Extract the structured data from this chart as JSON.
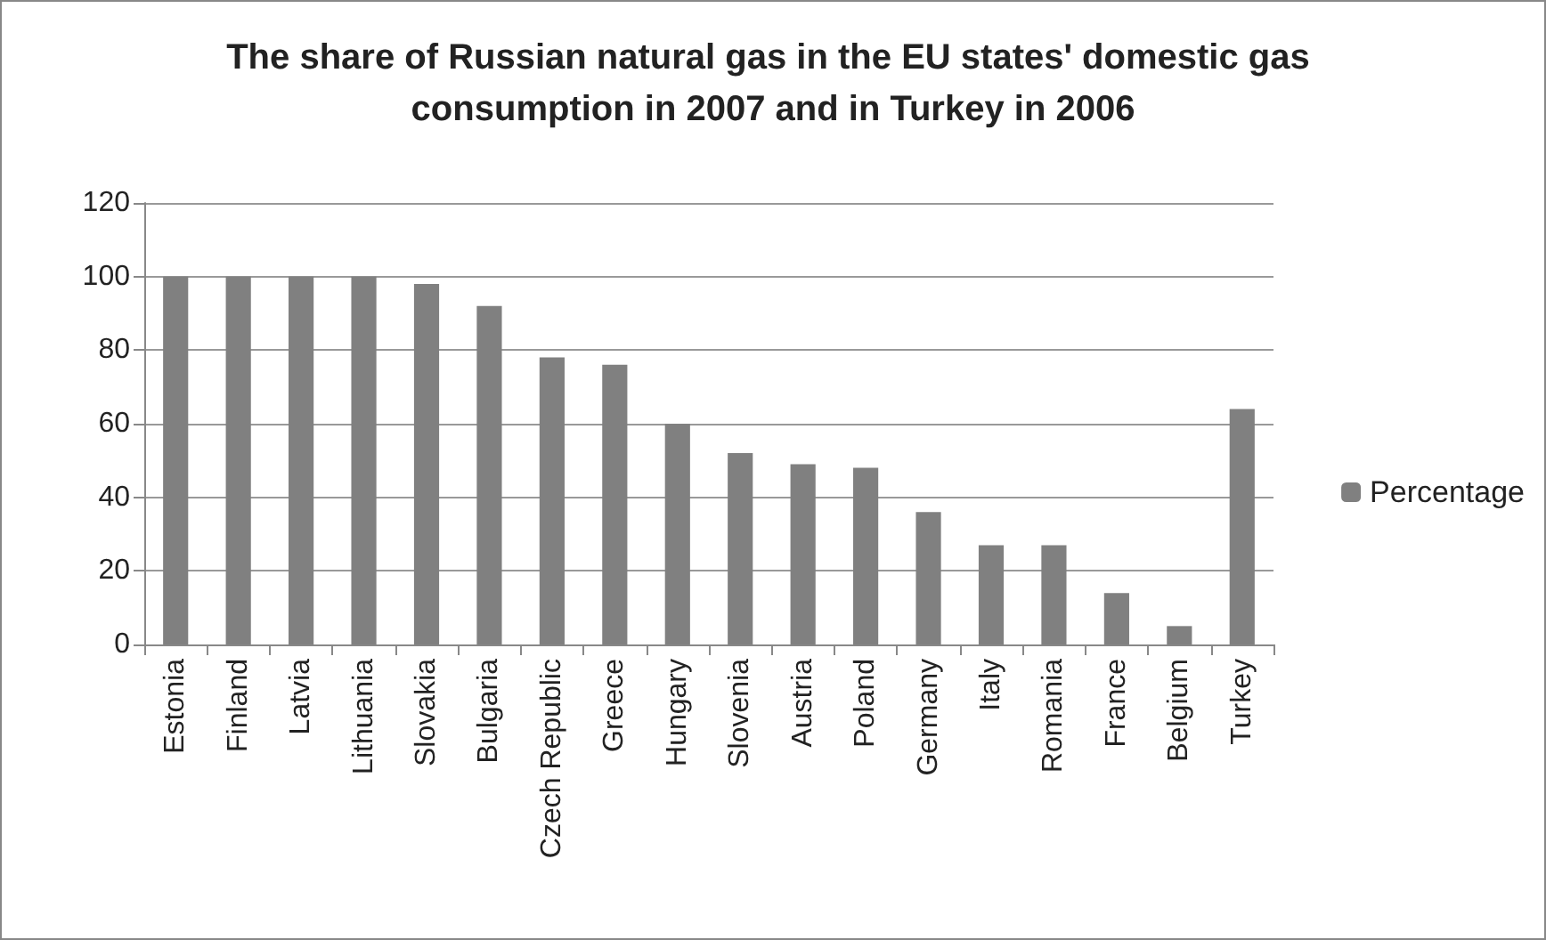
{
  "chart_data": {
    "type": "bar",
    "title": "The share of Russian natural gas in the EU states' domestic gas consumption in 2007 and in Turkey in 2006",
    "categories": [
      "Estonia",
      "Finland",
      "Latvia",
      "Lithuania",
      "Slovakia",
      "Bulgaria",
      "Czech Republic",
      "Greece",
      "Hungary",
      "Slovenia",
      "Austria",
      "Poland",
      "Germany",
      "Italy",
      "Romania",
      "France",
      "Belgium",
      "Turkey"
    ],
    "series": [
      {
        "name": "Percentage",
        "color": "#808080",
        "values": [
          100,
          100,
          100,
          100,
          98,
          92,
          78,
          76,
          60,
          52,
          49,
          48,
          36,
          27,
          27,
          14,
          5,
          64
        ]
      }
    ],
    "ylim": [
      0,
      120
    ],
    "yticks": [
      0,
      20,
      40,
      60,
      80,
      100,
      120
    ],
    "grid": "y",
    "legend": "right"
  }
}
